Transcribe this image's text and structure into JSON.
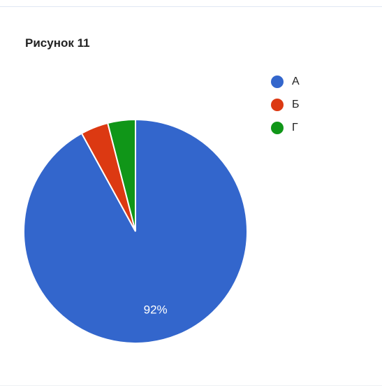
{
  "chart_data": {
    "type": "pie",
    "title": "Рисунок 11",
    "categories": [
      "А",
      "Б",
      "Г"
    ],
    "values": [
      92,
      4,
      4
    ],
    "colors": [
      "#3366cc",
      "#dc3912",
      "#109618"
    ],
    "data_labels": [
      "92%",
      "",
      ""
    ],
    "legend_position": "right"
  }
}
